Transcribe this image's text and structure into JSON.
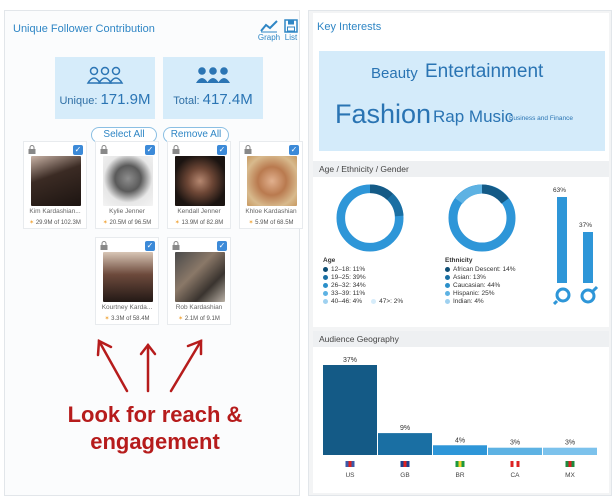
{
  "left": {
    "title": "Unique Follower Contribution",
    "graph_label": "Graph",
    "list_label": "List",
    "unique_label": "Unique:",
    "unique_value": "171.9M",
    "total_label": "Total:",
    "total_value": "417.4M",
    "select_all": "Select All",
    "remove_all": "Remove All",
    "influencers": [
      {
        "name": "Kim Kardashian...",
        "reach": "29.9M of 102.3M"
      },
      {
        "name": "Kylie Jenner",
        "reach": "20.5M of 96.5M"
      },
      {
        "name": "Kendall Jenner",
        "reach": "13.9M of 82.8M"
      },
      {
        "name": "Khloe Kardashian",
        "reach": "5.9M of 68.5M"
      },
      {
        "name": "Kourtney Karda...",
        "reach": "3.3M of 58.4M"
      },
      {
        "name": "Rob Kardashian",
        "reach": "2.1M of 9.1M"
      }
    ],
    "annotation_line1": "Look for reach &",
    "annotation_line2": "engagement"
  },
  "right": {
    "title": "Key Interests",
    "keywords": [
      "Beauty",
      "Entertainment",
      "Fashion",
      "Rap Music",
      "Business and Finance"
    ],
    "demo_title": "Age / Ethnicity / Gender",
    "age_heading": "Age",
    "age_rows": [
      {
        "label": "12–18: 11%",
        "color": "#0e4d73"
      },
      {
        "label": "19–25: 39%",
        "color": "#1a6fa3"
      },
      {
        "label": "26–32: 34%",
        "color": "#2b8fc9"
      },
      {
        "label": "33–39: 11%",
        "color": "#5db2e3"
      },
      {
        "label": "40–46: 4%",
        "color": "#9fd1f0"
      }
    ],
    "age_extra": "47>: 2%",
    "eth_heading": "Ethnicity",
    "eth_rows": [
      {
        "label": "African Descent: 14%",
        "color": "#0e4d73"
      },
      {
        "label": "Asian: 13%",
        "color": "#1a6fa3"
      },
      {
        "label": "Caucasian: 44%",
        "color": "#2b8fc9"
      },
      {
        "label": "Hispanic: 25%",
        "color": "#5db2e3"
      },
      {
        "label": "Indian: 4%",
        "color": "#9fd1f0"
      }
    ],
    "gender_female": "63%",
    "gender_male": "37%",
    "gender_female_value": 0.63,
    "gender_male_value": 0.37,
    "geo_title": "Audience Geography"
  },
  "chart_data": {
    "type": "bar",
    "categories": [
      "US",
      "GB",
      "BR",
      "CA",
      "MX"
    ],
    "values": [
      37,
      9,
      4,
      3,
      3
    ],
    "labels": [
      "37%",
      "9%",
      "4%",
      "3%",
      "3%"
    ],
    "colors": [
      "#145a86",
      "#1a6fa3",
      "#2e96d8",
      "#5db2e3",
      "#7cc2ec"
    ],
    "ylim": [
      0,
      37
    ]
  }
}
